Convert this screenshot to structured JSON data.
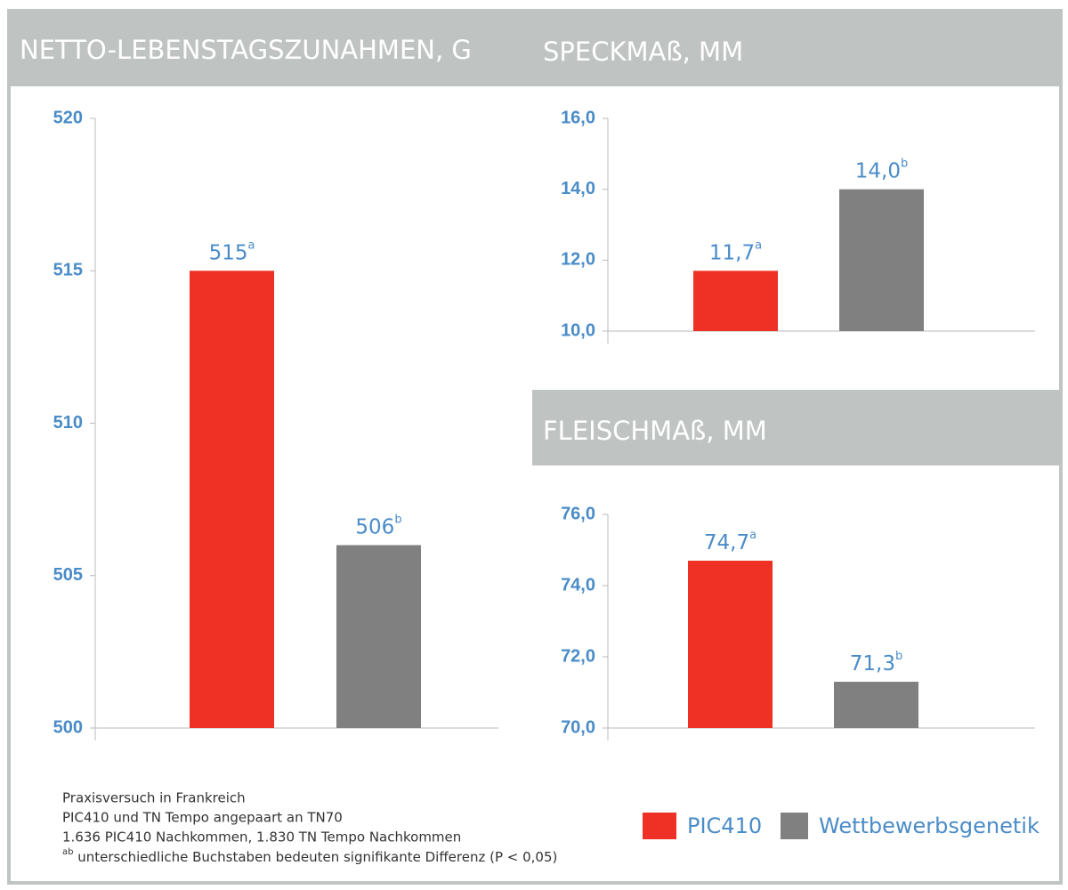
{
  "chart_data": [
    {
      "type": "bar",
      "title": "NETTO-LEBENSTAGSZUNAHMEN, G",
      "values": [
        515,
        506
      ],
      "value_labels": [
        "515",
        "506"
      ],
      "superscripts": [
        "a",
        "b"
      ],
      "ylim": [
        500,
        520
      ],
      "yticks": [
        500,
        505,
        510,
        515,
        520
      ]
    },
    {
      "type": "bar",
      "title": "SPECKMAß, MM",
      "values": [
        11.7,
        14.0
      ],
      "value_labels": [
        "11,7",
        "14,0"
      ],
      "superscripts": [
        "a",
        "b"
      ],
      "ylim": [
        10,
        16
      ],
      "yticks": [
        {
          "value": 10,
          "label": "10,0"
        },
        {
          "value": 12,
          "label": "12,0"
        },
        {
          "value": 14,
          "label": "14,0"
        },
        {
          "value": 16,
          "label": "16,0"
        }
      ]
    },
    {
      "type": "bar",
      "title": "FLEISCHMAß, MM",
      "values": [
        74.7,
        71.3
      ],
      "value_labels": [
        "74,7",
        "71,3"
      ],
      "superscripts": [
        "a",
        "b"
      ],
      "ylim": [
        70,
        76
      ],
      "yticks": [
        {
          "value": 70,
          "label": "70,0"
        },
        {
          "value": 72,
          "label": "72,0"
        },
        {
          "value": 74,
          "label": "74,0"
        },
        {
          "value": 76,
          "label": "76,0"
        }
      ]
    }
  ],
  "legend": [
    {
      "name": "PIC410",
      "color": "#ee3124"
    },
    {
      "name": "Wettbewerbsgenetik",
      "color": "#808080"
    }
  ],
  "notes": [
    "Praxisversuch in Frankreich",
    "PIC410 und TN Tempo angepaart an TN70",
    "1.636 PIC410 Nachkommen, 1.830 TN Tempo Nachkommen"
  ],
  "note_last": {
    "sup": "ab",
    "text": " unterschiedliche Buchstaben bedeuten signifikante Differenz (P < 0,05)"
  }
}
